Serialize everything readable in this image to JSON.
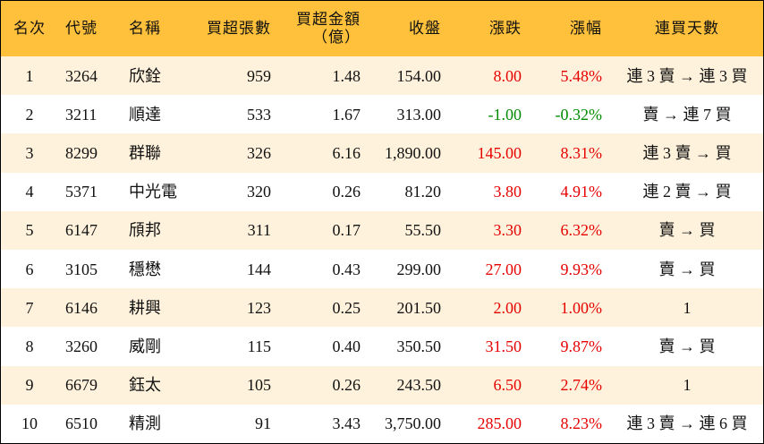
{
  "colors": {
    "header": "#FFC13B",
    "stripe": "#FFF2DC",
    "up": "#E60000",
    "down": "#008A00"
  },
  "header": {
    "columns": [
      [
        "名次"
      ],
      [
        "代號"
      ],
      [
        "名稱"
      ],
      [
        "買超張數"
      ],
      [
        "買超金額",
        "（億）"
      ],
      [
        "收盤"
      ],
      [
        "漲跌"
      ],
      [
        "漲幅"
      ],
      [
        "連買天數"
      ]
    ]
  },
  "table": {
    "rows": [
      [
        "1",
        "3264",
        "欣銓",
        "959",
        "1.48",
        "154.00",
        "8.00",
        "5.48%",
        "連 3 賣 → 連 3 買"
      ],
      [
        "2",
        "3211",
        "順達",
        "533",
        "1.67",
        "313.00",
        "-1.00",
        "-0.32%",
        "賣 → 連 7 買"
      ],
      [
        "3",
        "8299",
        "群聯",
        "326",
        "6.16",
        "1,890.00",
        "145.00",
        "8.31%",
        "連 3 賣 → 買"
      ],
      [
        "4",
        "5371",
        "中光電",
        "320",
        "0.26",
        "81.20",
        "3.80",
        "4.91%",
        "連 2 賣 → 買"
      ],
      [
        "5",
        "6147",
        "頎邦",
        "311",
        "0.17",
        "55.50",
        "3.30",
        "6.32%",
        "賣 → 買"
      ],
      [
        "6",
        "3105",
        "穩懋",
        "144",
        "0.43",
        "299.00",
        "27.00",
        "9.93%",
        "賣 → 買"
      ],
      [
        "7",
        "6146",
        "耕興",
        "123",
        "0.25",
        "201.50",
        "2.00",
        "1.00%",
        "1"
      ],
      [
        "8",
        "3260",
        "威剛",
        "115",
        "0.40",
        "350.50",
        "31.50",
        "9.87%",
        "賣 → 買"
      ],
      [
        "9",
        "6679",
        "鈺太",
        "105",
        "0.26",
        "243.50",
        "6.50",
        "2.74%",
        "1"
      ],
      [
        "10",
        "6510",
        "精測",
        "91",
        "3.43",
        "3,750.00",
        "285.00",
        "8.23%",
        "連 3 賣 → 連 6 買"
      ]
    ]
  }
}
